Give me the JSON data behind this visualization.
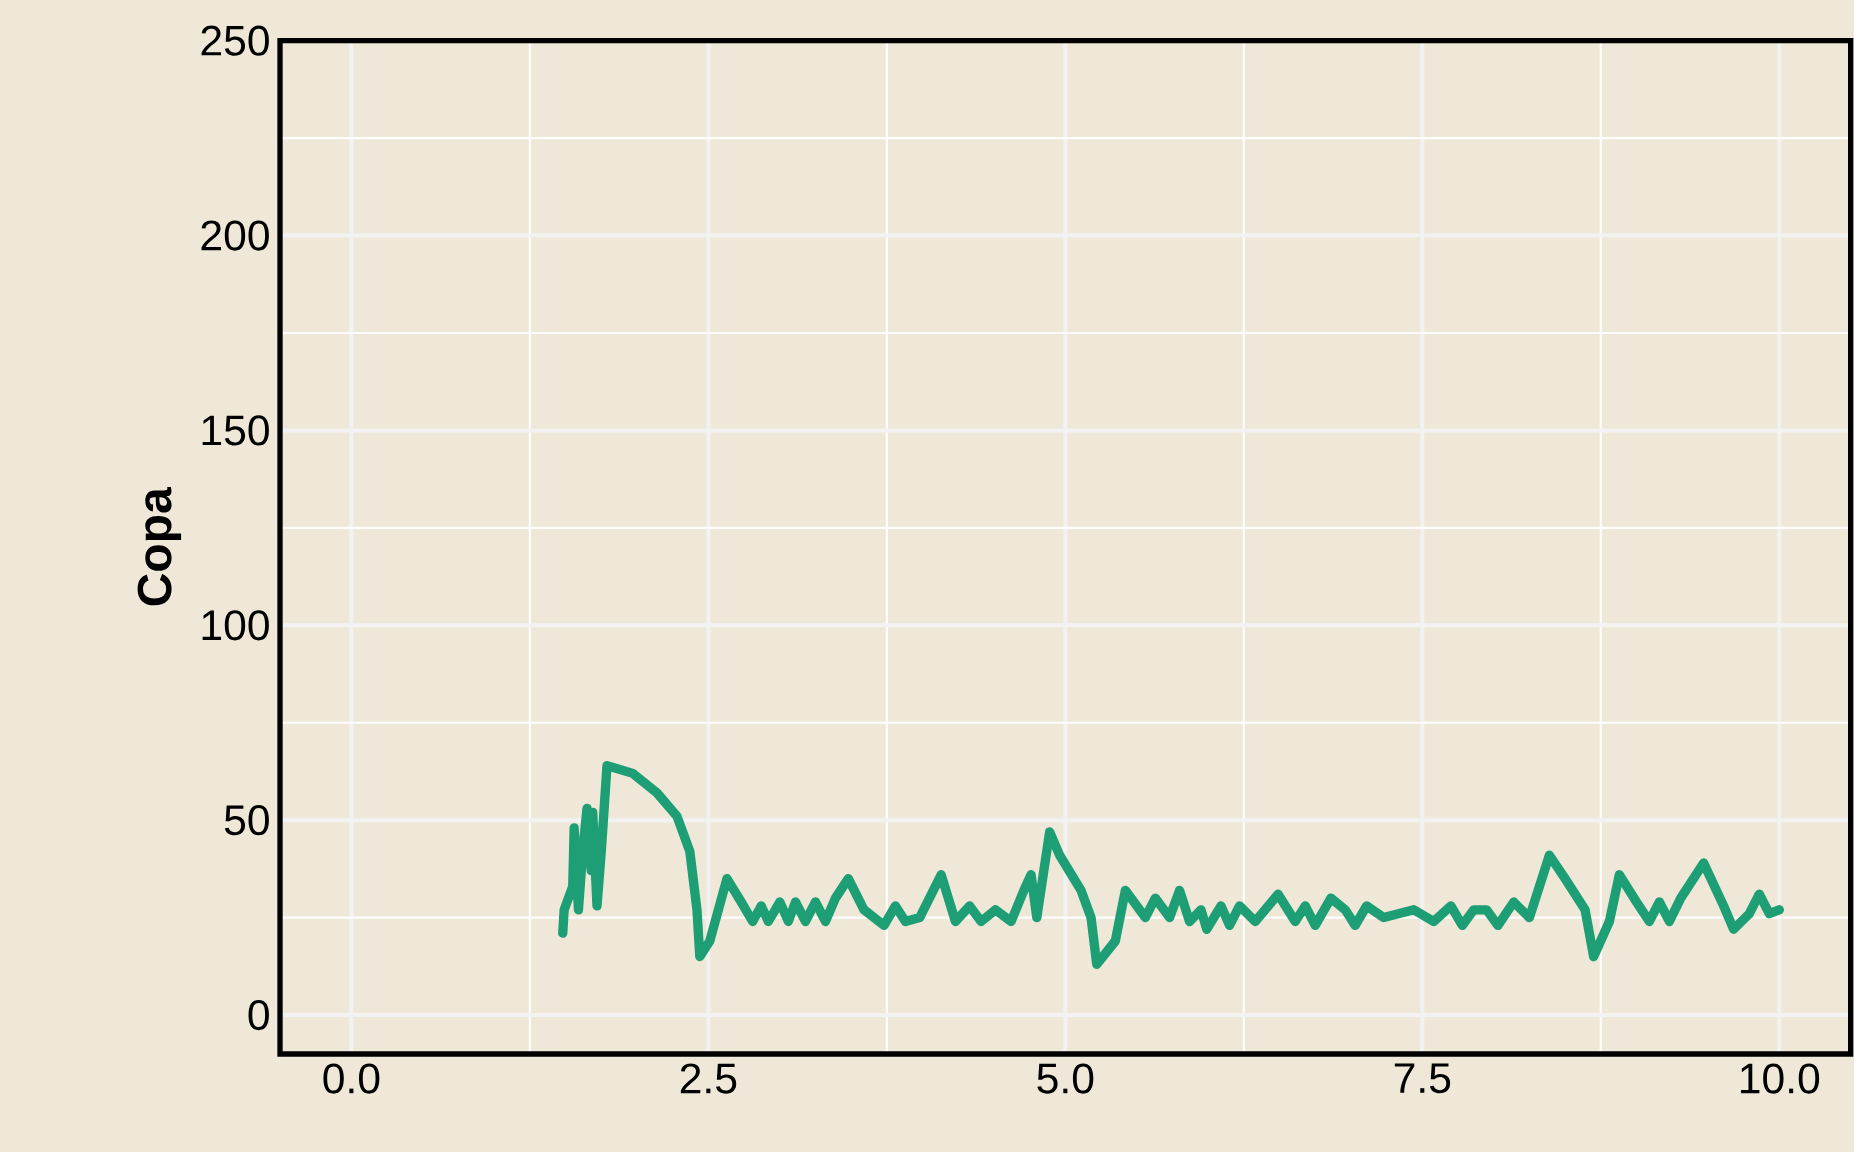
{
  "chart_data": {
    "type": "line",
    "ylabel": "Copa",
    "color": "#1d9e74",
    "grid": true,
    "xlim": [
      -0.5,
      10.5
    ],
    "ylim": [
      -10,
      250
    ],
    "xticks": [
      {
        "value": 0,
        "label": "0.0"
      },
      {
        "value": 2.5,
        "label": "2.5"
      },
      {
        "value": 5,
        "label": "5.0"
      },
      {
        "value": 7.5,
        "label": "7.5"
      },
      {
        "value": 10,
        "label": "10.0"
      }
    ],
    "yticks": [
      0,
      50,
      100,
      150,
      200,
      250
    ],
    "x": [
      1.48,
      1.49,
      1.55,
      1.56,
      1.59,
      1.62,
      1.65,
      1.68,
      1.69,
      1.72,
      1.75,
      1.79,
      1.97,
      2.14,
      2.28,
      2.37,
      2.42,
      2.44,
      2.51,
      2.63,
      2.73,
      2.81,
      2.87,
      2.92,
      3.0,
      3.06,
      3.11,
      3.18,
      3.25,
      3.32,
      3.39,
      3.48,
      3.59,
      3.73,
      3.81,
      3.88,
      3.98,
      4.13,
      4.23,
      4.33,
      4.41,
      4.51,
      4.62,
      4.71,
      4.76,
      4.8,
      4.89,
      4.96,
      5.11,
      5.18,
      5.22,
      5.35,
      5.42,
      5.56,
      5.63,
      5.73,
      5.8,
      5.87,
      5.95,
      5.99,
      6.09,
      6.15,
      6.22,
      6.33,
      6.49,
      6.61,
      6.68,
      6.75,
      6.86,
      6.96,
      7.03,
      7.11,
      7.23,
      7.44,
      7.58,
      7.7,
      7.78,
      7.86,
      7.95,
      8.03,
      8.14,
      8.25,
      8.39,
      8.5,
      8.64,
      8.7,
      8.81,
      8.88,
      9.0,
      9.09,
      9.16,
      9.23,
      9.31,
      9.47,
      9.61,
      9.68,
      9.79,
      9.86,
      9.93,
      10.0
    ],
    "values": [
      21,
      27,
      33,
      48,
      27,
      42,
      53,
      37,
      52,
      28,
      42,
      64,
      62,
      57,
      51,
      42,
      27,
      15,
      19,
      35,
      29,
      24,
      28,
      24,
      29,
      24,
      29,
      24,
      29,
      24,
      30,
      35,
      27,
      23,
      28,
      24,
      25,
      36,
      24,
      28,
      24,
      27,
      24,
      32,
      36,
      25,
      47,
      41,
      32,
      25,
      13,
      19,
      32,
      25,
      30,
      25,
      32,
      24,
      27,
      22,
      28,
      23,
      28,
      24,
      31,
      24,
      28,
      23,
      30,
      27,
      23,
      28,
      25,
      27,
      24,
      28,
      23,
      27,
      27,
      23,
      29,
      25,
      41,
      35,
      27,
      15,
      24,
      36,
      29,
      24,
      29,
      24,
      30,
      39,
      28,
      22,
      26,
      31,
      26,
      27
    ]
  }
}
